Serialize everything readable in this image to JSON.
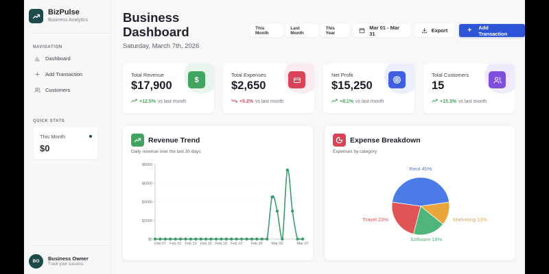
{
  "app": {
    "name": "BizPulse",
    "tagline": "Business Analytics",
    "logo_icon": "trending-up-icon",
    "brand_color": "#1e4a4a"
  },
  "sidebar": {
    "navigation_title": "NAVIGATION",
    "items": [
      {
        "label": "Dashboard",
        "icon": "bar-chart-icon"
      },
      {
        "label": "Add Transaction",
        "icon": "plus-icon"
      },
      {
        "label": "Customers",
        "icon": "users-icon"
      }
    ],
    "quick_stats_title": "QUICK STATS",
    "quick_stats": {
      "label": "This Month",
      "value": "$0"
    },
    "user": {
      "initials": "BO",
      "name": "Business Owner",
      "subtitle": "Track your success"
    }
  },
  "header": {
    "title_line1": "Business",
    "title_line2": "Dashboard",
    "date": "Saturday, March 7th, 2026",
    "period_buttons": [
      "This Month",
      "Last Month",
      "This Year"
    ],
    "date_range": "Mar 01 - Mar 31",
    "export_label": "Export",
    "add_transaction_label": "Add Transaction",
    "primary_color": "#2e54d8"
  },
  "kpis": [
    {
      "label": "Total Revenue",
      "value": "$17,900",
      "change": "+12.5%",
      "suffix": "vs last month",
      "direction": "up",
      "icon": "dollar-icon",
      "color": "#3fa560",
      "blob": "#e6f4ea",
      "trend_color": "#3fa560"
    },
    {
      "label": "Total Expenses",
      "value": "$2,650",
      "change": "+5.2%",
      "suffix": "vs last month",
      "direction": "down",
      "icon": "credit-card-icon",
      "color": "#d94358",
      "blob": "#fbe7ea",
      "trend_color": "#d94358"
    },
    {
      "label": "Net Profit",
      "value": "$15,250",
      "change": "+8.1%",
      "suffix": "vs last month",
      "direction": "up",
      "icon": "target-icon",
      "color": "#3f5fe0",
      "blob": "#e9ecfb",
      "trend_color": "#3fa560"
    },
    {
      "label": "Total Customers",
      "value": "15",
      "change": "+15.3%",
      "suffix": "vs last month",
      "direction": "up",
      "icon": "users-icon",
      "color": "#7e4fdc",
      "blob": "#efe9fb",
      "trend_color": "#3fa560"
    }
  ],
  "revenue_card": {
    "title": "Revenue Trend",
    "subtitle": "Daily revenue over the last 30 days"
  },
  "expense_card": {
    "title": "Expense Breakdown",
    "subtitle": "Expenses by category"
  },
  "chart_data": [
    {
      "type": "line",
      "title": "Revenue Trend",
      "subtitle": "Daily revenue over the last 30 days",
      "xlabel": "",
      "ylabel": "",
      "x": [
        "Feb 06",
        "Feb 07",
        "Feb 08",
        "Feb 09",
        "Feb 10",
        "Feb 11",
        "Feb 12",
        "Feb 13",
        "Feb 14",
        "Feb 15",
        "Feb 16",
        "Feb 17",
        "Feb 18",
        "Feb 19",
        "Feb 20",
        "Feb 21",
        "Feb 22",
        "Feb 23",
        "Feb 24",
        "Feb 25",
        "Feb 26",
        "Feb 27",
        "Feb 28",
        "Mar 01",
        "Mar 02",
        "Mar 03",
        "Mar 04",
        "Mar 05",
        "Mar 06",
        "Mar 07"
      ],
      "values": [
        0,
        0,
        0,
        0,
        0,
        0,
        0,
        0,
        0,
        0,
        0,
        0,
        0,
        0,
        0,
        0,
        0,
        0,
        0,
        0,
        0,
        0,
        0,
        4500,
        3000,
        0,
        7400,
        3000,
        0,
        0
      ],
      "x_tick_labels": [
        "Feb 07",
        "Feb 10",
        "Feb 13",
        "Feb 16",
        "Feb 19",
        "Feb 22",
        "Feb 26",
        "Mar 02",
        "Mar 07"
      ],
      "y_ticks": [
        "$0",
        "$2000",
        "$4000",
        "$6000",
        "$8000"
      ],
      "ylim": [
        0,
        8000
      ],
      "grid": true,
      "color": "#3a9a6a"
    },
    {
      "type": "pie",
      "title": "Expense Breakdown",
      "subtitle": "Expenses by category",
      "categories": [
        "Rent",
        "Marketing",
        "Software",
        "Travel"
      ],
      "values": [
        45,
        13,
        18,
        23
      ],
      "labels": [
        "Rent 45%",
        "Marketing 13%",
        "Software 18%",
        "Travel 23%"
      ],
      "colors": [
        "#4a7be6",
        "#eaa63b",
        "#4fb57a",
        "#df5454"
      ]
    }
  ]
}
